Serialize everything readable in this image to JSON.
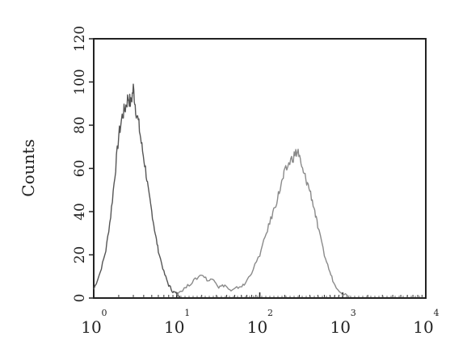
{
  "chart_data": {
    "type": "line",
    "ylabel": "Counts",
    "xscale": "log",
    "xlim": [
      1,
      10000
    ],
    "ylim": [
      0,
      120
    ],
    "yticks": [
      0,
      20,
      40,
      60,
      80,
      100,
      120
    ],
    "xticks": [
      {
        "base": "10",
        "exp": "0",
        "value": 1
      },
      {
        "base": "10",
        "exp": "1",
        "value": 10
      },
      {
        "base": "10",
        "exp": "2",
        "value": 100
      },
      {
        "base": "10",
        "exp": "3",
        "value": 1000
      },
      {
        "base": "10",
        "exp": "4",
        "value": 10000
      }
    ],
    "grid": false,
    "series": [
      {
        "color": "#555555",
        "x": [
          1.0,
          1.2,
          1.4,
          1.6,
          1.8,
          2.0,
          2.2,
          2.4,
          2.6,
          2.8,
          3.0,
          3.2,
          3.5,
          3.8,
          4.2,
          4.6,
          5.0,
          5.5,
          6.0,
          7.0,
          8.0,
          9.0,
          10.0,
          11.0
        ],
        "y": [
          4,
          12,
          22,
          38,
          57,
          75,
          84,
          88,
          93,
          90,
          97,
          88,
          80,
          70,
          60,
          48,
          40,
          30,
          22,
          12,
          6,
          3,
          2,
          1
        ]
      },
      {
        "color": "#8a8a8a",
        "x": [
          10,
          13,
          16,
          20,
          24,
          28,
          32,
          38,
          45,
          55,
          65,
          80,
          100,
          120,
          140,
          160,
          180,
          200,
          230,
          260,
          290,
          320,
          360,
          400,
          450,
          500,
          600,
          700,
          800,
          1000,
          1200
        ],
        "y": [
          2,
          5,
          8,
          11,
          8,
          9,
          5,
          6,
          3,
          5,
          6,
          12,
          20,
          30,
          38,
          45,
          52,
          58,
          63,
          66,
          68,
          60,
          55,
          50,
          42,
          33,
          20,
          12,
          6,
          2,
          1
        ]
      }
    ]
  }
}
